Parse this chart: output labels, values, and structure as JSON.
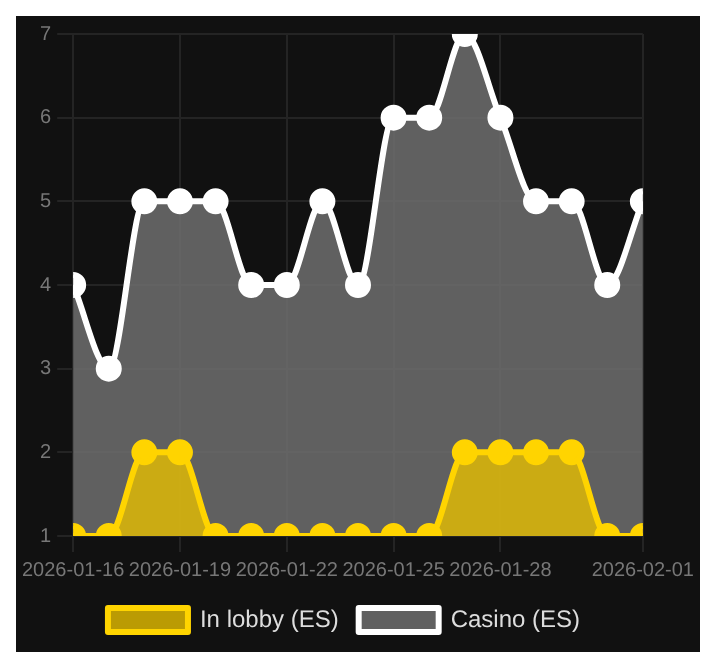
{
  "chart_data": {
    "type": "area",
    "x": [
      "2026-01-16",
      "2026-01-17",
      "2026-01-18",
      "2026-01-19",
      "2026-01-20",
      "2026-01-21",
      "2026-01-22",
      "2026-01-23",
      "2026-01-24",
      "2026-01-25",
      "2026-01-26",
      "2026-01-27",
      "2026-01-28",
      "2026-01-29",
      "2026-01-30",
      "2026-01-31",
      "2026-02-01"
    ],
    "series": [
      {
        "name": "In lobby (ES)",
        "color": "#ffd400",
        "values": [
          1,
          1,
          2,
          2,
          1,
          1,
          1,
          1,
          1,
          1,
          1,
          2,
          2,
          2,
          2,
          1,
          1
        ]
      },
      {
        "name": "Casino (ES)",
        "color": "#ffffff",
        "values": [
          4,
          3,
          5,
          5,
          5,
          4,
          4,
          5,
          4,
          6,
          6,
          7,
          6,
          5,
          5,
          4,
          5
        ]
      }
    ],
    "xlim": [
      "2026-01-16",
      "2026-02-01"
    ],
    "xticks": [
      "2026-01-16",
      "2026-01-19",
      "2026-01-22",
      "2026-01-25",
      "2026-01-28",
      "2026-02-01"
    ],
    "ylim": [
      1,
      7
    ],
    "yticks": [
      1,
      2,
      3,
      4,
      5,
      6,
      7
    ],
    "grid": true,
    "legend": "bottom",
    "marker": "circle",
    "line_style": "solid"
  }
}
